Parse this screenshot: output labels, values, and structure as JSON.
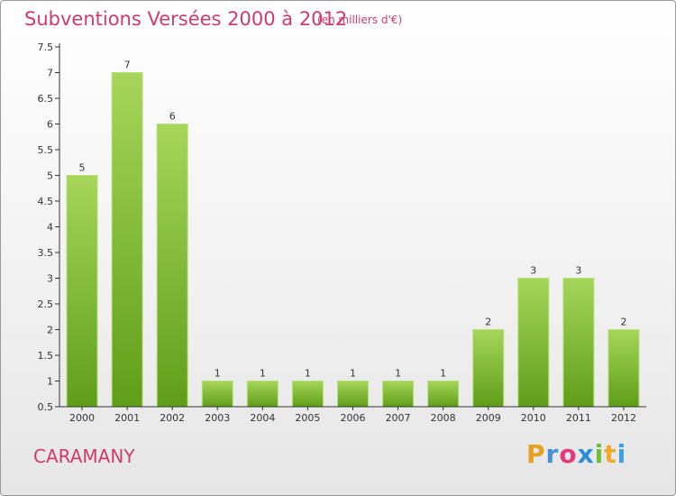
{
  "header": {
    "title": "Subventions Versées 2000 à 2012",
    "subtitle": "(en milliers d'€)"
  },
  "footer": {
    "commune": "CARAMANY",
    "logo_letters": [
      "P",
      "r",
      "o",
      "x",
      "i",
      "t",
      "i"
    ],
    "logo_colors": [
      "#e8a020",
      "#4a90d9",
      "#e23a7a",
      "#2c8ed6",
      "#6cbf3a",
      "#f0a92a",
      "#3aa0e0"
    ]
  },
  "colors": {
    "bar_light": "#a6d65a",
    "bar_dark": "#5f9e19",
    "axis": "#333333",
    "title": "#d13a6f"
  },
  "chart_data": {
    "type": "bar",
    "categories": [
      "2000",
      "2001",
      "2002",
      "2003",
      "2004",
      "2005",
      "2006",
      "2007",
      "2008",
      "2009",
      "2010",
      "2011",
      "2012"
    ],
    "values": [
      5,
      7,
      6,
      1,
      1,
      1,
      1,
      1,
      1,
      2,
      3,
      3,
      2
    ],
    "data_labels": [
      "5",
      "7",
      "6",
      "1",
      "1",
      "1",
      "1",
      "1",
      "1",
      "2",
      "3",
      "3",
      "2"
    ],
    "yticks": [
      "0.5",
      "1",
      "1.5",
      "2",
      "2.5",
      "3",
      "3.5",
      "4",
      "4.5",
      "5",
      "5.5",
      "6",
      "6.5",
      "7",
      "7.5"
    ],
    "ylim": [
      0.5,
      7.5
    ],
    "grid": false,
    "legend": "none"
  }
}
